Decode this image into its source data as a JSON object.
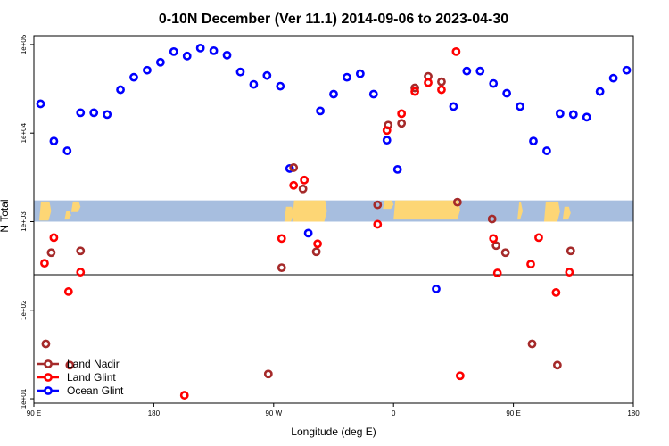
{
  "chart_data": {
    "type": "scatter",
    "title": "0-10N December (Ver 11.1)   2014-09-06 to 2023-04-30",
    "xlabel": "Longitude (deg E)",
    "ylabel": "N Total",
    "x_axis": {
      "range_lon_east": [
        90,
        540
      ],
      "ticks": [
        {
          "value": 90,
          "label": "90 E"
        },
        {
          "value": 180,
          "label": "180"
        },
        {
          "value": 270,
          "label": "90 W"
        },
        {
          "value": 360,
          "label": "0"
        },
        {
          "value": 450,
          "label": "90 E"
        },
        {
          "value": 540,
          "label": "180"
        }
      ]
    },
    "y_axis": {
      "scale": "log10",
      "range_log10": [
        0.95,
        5.1
      ],
      "ticks": [
        {
          "value": 1,
          "label": "1e+01"
        },
        {
          "value": 2,
          "label": "1e+02"
        },
        {
          "value": 3,
          "label": "1e+03"
        },
        {
          "value": 4,
          "label": "1e+04"
        },
        {
          "value": 5,
          "label": "1e+05"
        }
      ],
      "reference_line_log10": 2.4
    },
    "map_band": {
      "log10_range": [
        3.0,
        3.24
      ],
      "ocean_color": "#a7bedf",
      "land_color": "#fdd675"
    },
    "colors": {
      "land_nadir": "#a52a2a",
      "land_glint": "#ff0000",
      "ocean_glint": "#0000ff"
    },
    "legend": {
      "position": "bottom-left",
      "entries": [
        {
          "name": "Land Nadir",
          "color_key": "land_nadir"
        },
        {
          "name": "Land Glint",
          "color_key": "land_glint"
        },
        {
          "name": "Ocean Glint",
          "color_key": "ocean_glint"
        }
      ]
    },
    "series": [
      {
        "name": "Ocean Glint",
        "color_key": "ocean_glint",
        "points": [
          {
            "lon": 95,
            "log10": 4.33
          },
          {
            "lon": 105,
            "log10": 3.91
          },
          {
            "lon": 115,
            "log10": 3.8
          },
          {
            "lon": 125,
            "log10": 4.23
          },
          {
            "lon": 135,
            "log10": 4.23
          },
          {
            "lon": 145,
            "log10": 4.21
          },
          {
            "lon": 155,
            "log10": 4.49
          },
          {
            "lon": 165,
            "log10": 4.63
          },
          {
            "lon": 175,
            "log10": 4.71
          },
          {
            "lon": 185,
            "log10": 4.8
          },
          {
            "lon": 195,
            "log10": 4.92
          },
          {
            "lon": 205,
            "log10": 4.87
          },
          {
            "lon": 215,
            "log10": 4.96
          },
          {
            "lon": 225,
            "log10": 4.93
          },
          {
            "lon": 235,
            "log10": 4.88
          },
          {
            "lon": 245,
            "log10": 4.69
          },
          {
            "lon": 255,
            "log10": 4.55
          },
          {
            "lon": 265,
            "log10": 4.65
          },
          {
            "lon": 275,
            "log10": 4.53
          },
          {
            "lon": 282,
            "log10": 3.6
          },
          {
            "lon": 296,
            "log10": 2.87
          },
          {
            "lon": 305,
            "log10": 4.25
          },
          {
            "lon": 315,
            "log10": 4.44
          },
          {
            "lon": 325,
            "log10": 4.63
          },
          {
            "lon": 335,
            "log10": 4.67
          },
          {
            "lon": 345,
            "log10": 4.44
          },
          {
            "lon": 355,
            "log10": 3.92
          },
          {
            "lon": 363,
            "log10": 3.59
          },
          {
            "lon": 392,
            "log10": 2.24
          },
          {
            "lon": 405,
            "log10": 4.3
          },
          {
            "lon": 415,
            "log10": 4.7
          },
          {
            "lon": 425,
            "log10": 4.7
          },
          {
            "lon": 435,
            "log10": 4.56
          },
          {
            "lon": 445,
            "log10": 4.45
          },
          {
            "lon": 455,
            "log10": 4.3
          },
          {
            "lon": 465,
            "log10": 3.91
          },
          {
            "lon": 475,
            "log10": 3.8
          },
          {
            "lon": 485,
            "log10": 4.22
          },
          {
            "lon": 495,
            "log10": 4.21
          },
          {
            "lon": 505,
            "log10": 4.18
          },
          {
            "lon": 515,
            "log10": 4.47
          },
          {
            "lon": 525,
            "log10": 4.62
          },
          {
            "lon": 535,
            "log10": 4.71
          }
        ]
      },
      {
        "name": "Land Nadir",
        "color_key": "land_nadir",
        "points": [
          {
            "lon": 99,
            "log10": 1.62
          },
          {
            "lon": 103,
            "log10": 2.65
          },
          {
            "lon": 117,
            "log10": 1.38
          },
          {
            "lon": 125,
            "log10": 2.67
          },
          {
            "lon": 266,
            "log10": 1.28
          },
          {
            "lon": 276,
            "log10": 2.48
          },
          {
            "lon": 285,
            "log10": 3.61
          },
          {
            "lon": 292,
            "log10": 3.37
          },
          {
            "lon": 302,
            "log10": 2.66
          },
          {
            "lon": 348,
            "log10": 3.19
          },
          {
            "lon": 356,
            "log10": 4.09
          },
          {
            "lon": 366,
            "log10": 4.11
          },
          {
            "lon": 376,
            "log10": 4.51
          },
          {
            "lon": 386,
            "log10": 4.64
          },
          {
            "lon": 396,
            "log10": 4.58
          },
          {
            "lon": 408,
            "log10": 3.22
          },
          {
            "lon": 434,
            "log10": 3.03
          },
          {
            "lon": 437,
            "log10": 2.73
          },
          {
            "lon": 444,
            "log10": 2.65
          },
          {
            "lon": 464,
            "log10": 1.62
          },
          {
            "lon": 483,
            "log10": 1.38
          },
          {
            "lon": 493,
            "log10": 2.67
          }
        ]
      },
      {
        "name": "Land Glint",
        "color_key": "land_glint",
        "points": [
          {
            "lon": 98,
            "log10": 2.53
          },
          {
            "lon": 105,
            "log10": 2.82
          },
          {
            "lon": 116,
            "log10": 2.21
          },
          {
            "lon": 125,
            "log10": 2.43
          },
          {
            "lon": 203,
            "log10": 1.04
          },
          {
            "lon": 276,
            "log10": 2.81
          },
          {
            "lon": 285,
            "log10": 3.41
          },
          {
            "lon": 293,
            "log10": 3.47
          },
          {
            "lon": 303,
            "log10": 2.75
          },
          {
            "lon": 348,
            "log10": 2.97
          },
          {
            "lon": 355,
            "log10": 4.03
          },
          {
            "lon": 366,
            "log10": 4.22
          },
          {
            "lon": 376,
            "log10": 4.47
          },
          {
            "lon": 386,
            "log10": 4.57
          },
          {
            "lon": 396,
            "log10": 4.49
          },
          {
            "lon": 407,
            "log10": 4.92
          },
          {
            "lon": 410,
            "log10": 1.26
          },
          {
            "lon": 435,
            "log10": 2.81
          },
          {
            "lon": 438,
            "log10": 2.42
          },
          {
            "lon": 463,
            "log10": 2.52
          },
          {
            "lon": 469,
            "log10": 2.82
          },
          {
            "lon": 482,
            "log10": 2.2
          },
          {
            "lon": 492,
            "log10": 2.43
          }
        ]
      }
    ]
  }
}
